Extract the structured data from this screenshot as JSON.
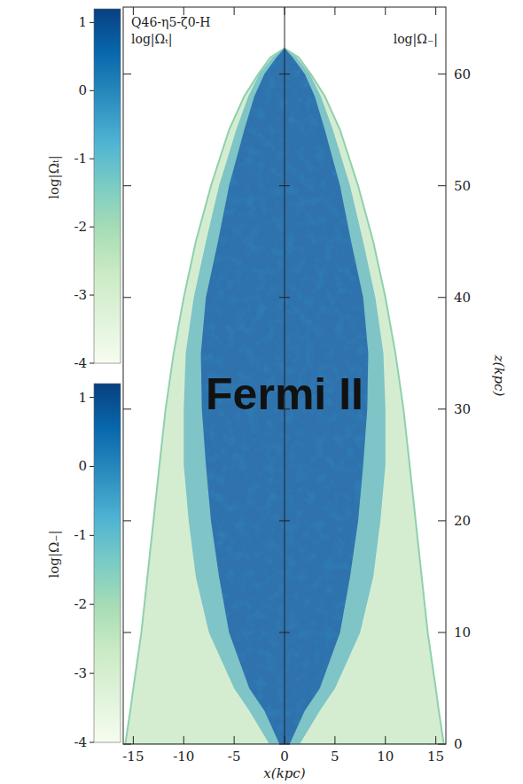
{
  "chart_data": {
    "type": "heatmap",
    "title": "Q46-η5-ζ0-H",
    "panel_labels": [
      "log|Ωₜ|",
      "log|Ω₋|"
    ],
    "annotation": "Fermi II",
    "x_label": "x(kpc)",
    "y_label": "z(kpc)",
    "xlim": [
      -16,
      16
    ],
    "xticks": [
      -15,
      -10,
      -5,
      0,
      5,
      10,
      15
    ],
    "ylim": [
      0,
      66
    ],
    "yticks": [
      0,
      10,
      20,
      30,
      40,
      50,
      60
    ],
    "z": [
      0,
      3,
      5,
      10,
      15,
      20,
      25,
      30,
      35,
      40,
      45,
      50,
      55,
      58,
      60,
      61.5,
      62.3
    ],
    "series": [
      {
        "color": "#d4edd1",
        "values": [
          15.8,
          15.3,
          15,
          14.2,
          13.6,
          13,
          12.4,
          11.8,
          11,
          10,
          8.8,
          7.3,
          5.5,
          4,
          2.6,
          1.4,
          0
        ]
      },
      {
        "color": "#7fc4c6",
        "values": [
          1.5,
          3.5,
          5,
          7.5,
          8.8,
          9.5,
          10,
          10,
          9.8,
          9,
          7.8,
          6.5,
          4.8,
          3.6,
          2.5,
          1.2,
          0
        ]
      },
      {
        "color": "#2f72ad",
        "values": [
          0.5,
          2,
          3.5,
          5.5,
          6.5,
          7.3,
          7.8,
          8.2,
          8.3,
          7.8,
          6.6,
          5.5,
          4,
          3,
          2,
          0.8,
          0
        ]
      }
    ],
    "colorbars": [
      {
        "label": "log|Ωₜ|",
        "range": [
          -4,
          1.2
        ],
        "ticks": [
          -4,
          -3,
          -2,
          -1,
          0,
          1
        ]
      },
      {
        "label": "log|Ω₋|",
        "range": [
          -4,
          1.2
        ],
        "ticks": [
          -4,
          -3,
          -2,
          -1,
          0,
          1
        ]
      }
    ],
    "colors": [
      "#f7fcf0",
      "#e0f3db",
      "#ccebc5",
      "#a8ddb5",
      "#7bccc4",
      "#4eb3d3",
      "#2b8cbe",
      "#0868ac",
      "#084081"
    ]
  }
}
